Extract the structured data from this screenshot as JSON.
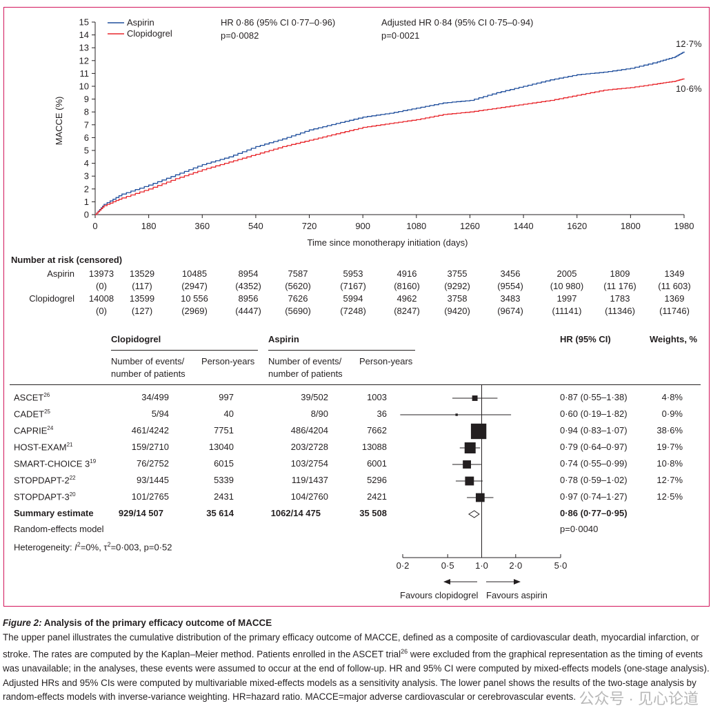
{
  "km": {
    "y_label": "MACCE (%)",
    "x_label": "Time since monotherapy initiation (days)",
    "y_ticks": [
      "0",
      "1",
      "2",
      "3",
      "4",
      "5",
      "6",
      "7",
      "8",
      "9",
      "10",
      "11",
      "12",
      "13",
      "14",
      "15"
    ],
    "x_ticks": [
      "0",
      "180",
      "360",
      "540",
      "720",
      "900",
      "1080",
      "1260",
      "1440",
      "1620",
      "1800",
      "1980"
    ],
    "legend": [
      {
        "label": "Aspirin",
        "color": "#1f4e9c"
      },
      {
        "label": "Clopidogrel",
        "color": "#e8262b"
      }
    ],
    "hr_text": "HR 0·86 (95% CI 0·77–0·96)",
    "hr_p": "p=0·0082",
    "adj_text": "Adjusted HR 0·84 (95% CI 0·75–0·94)",
    "adj_p": "p=0·0021",
    "end_labels": {
      "aspirin": "12·7%",
      "clopidogrel": "10·6%"
    }
  },
  "chart_data": {
    "type": "line",
    "title": "",
    "xlabel": "Time since monotherapy initiation (days)",
    "ylabel": "MACCE (%)",
    "xlim": [
      0,
      1980
    ],
    "ylim": [
      0,
      15
    ],
    "series": [
      {
        "name": "Aspirin",
        "x": [
          0,
          30,
          90,
          180,
          270,
          360,
          450,
          540,
          630,
          720,
          810,
          900,
          990,
          1080,
          1170,
          1260,
          1350,
          1440,
          1530,
          1620,
          1710,
          1800,
          1890,
          1950,
          1980
        ],
        "y": [
          0,
          0.8,
          1.6,
          2.3,
          3.1,
          3.9,
          4.5,
          5.3,
          5.9,
          6.6,
          7.1,
          7.6,
          7.9,
          8.3,
          8.7,
          8.9,
          9.5,
          10.0,
          10.5,
          10.9,
          11.1,
          11.4,
          11.9,
          12.3,
          12.7
        ]
      },
      {
        "name": "Clopidogrel",
        "x": [
          0,
          30,
          90,
          180,
          270,
          360,
          450,
          540,
          630,
          720,
          810,
          900,
          990,
          1080,
          1170,
          1260,
          1350,
          1440,
          1530,
          1620,
          1710,
          1800,
          1890,
          1950,
          1980
        ],
        "y": [
          0,
          0.7,
          1.3,
          2.0,
          2.8,
          3.5,
          4.1,
          4.7,
          5.3,
          5.8,
          6.3,
          6.8,
          7.1,
          7.4,
          7.8,
          8.0,
          8.3,
          8.6,
          8.9,
          9.3,
          9.7,
          9.9,
          10.2,
          10.4,
          10.6
        ]
      }
    ],
    "end_labels": [
      "12·7%",
      "10·6%"
    ]
  },
  "risk": {
    "title": "Number at risk (censored)",
    "rows": [
      {
        "label": "Aspirin",
        "n": [
          "13973",
          "13529",
          "10485",
          "8954",
          "7587",
          "5953",
          "4916",
          "3755",
          "3456",
          "2005",
          "1809",
          "1349"
        ],
        "c": [
          "(0)",
          "(117)",
          "(2947)",
          "(4352)",
          "(5620)",
          "(7167)",
          "(8160)",
          "(9292)",
          "(9554)",
          "(10 980)",
          "(11 176)",
          "(11 603)"
        ]
      },
      {
        "label": "Clopidogrel",
        "n": [
          "14008",
          "13599",
          "10 556",
          "8956",
          "7626",
          "5994",
          "4962",
          "3758",
          "3483",
          "1997",
          "1783",
          "1369"
        ],
        "c": [
          "(0)",
          "(127)",
          "(2969)",
          "(4447)",
          "(5690)",
          "(7248)",
          "(8247)",
          "(9420)",
          "(9674)",
          "(11141)",
          "(11346)",
          "(11746)"
        ]
      }
    ]
  },
  "forest": {
    "headers": {
      "clop": "Clopidogrel",
      "asp": "Aspirin",
      "hr": "HR (95% CI)",
      "w": "Weights, %"
    },
    "sub": {
      "events": "Number of events/",
      "patients": "number of patients",
      "py": "Person-years"
    },
    "studies": [
      {
        "name": "ASCET",
        "ref": "26",
        "ce": "34/499",
        "cp": "997",
        "ae": "39/502",
        "ap": "1003",
        "hr": "0·87 (0·55–1·38)",
        "w": "4·8%",
        "est": 0.87,
        "lo": 0.55,
        "hi": 1.38,
        "weight": 4.8
      },
      {
        "name": "CADET",
        "ref": "25",
        "ce": "5/94",
        "cp": "40",
        "ae": "8/90",
        "ap": "36",
        "hr": "0·60 (0·19–1·82)",
        "w": "0·9%",
        "est": 0.6,
        "lo": 0.19,
        "hi": 1.82,
        "weight": 0.9
      },
      {
        "name": "CAPRIE",
        "ref": "24",
        "ce": "461/4242",
        "cp": "7751",
        "ae": "486/4204",
        "ap": "7662",
        "hr": "0·94 (0·83–1·07)",
        "w": "38·6%",
        "est": 0.94,
        "lo": 0.83,
        "hi": 1.07,
        "weight": 38.6
      },
      {
        "name": "HOST-EXAM",
        "ref": "21",
        "ce": "159/2710",
        "cp": "13040",
        "ae": "203/2728",
        "ap": "13088",
        "hr": "0·79 (0·64–0·97)",
        "w": "19·7%",
        "est": 0.79,
        "lo": 0.64,
        "hi": 0.97,
        "weight": 19.7
      },
      {
        "name": "SMART-CHOICE 3",
        "ref": "19",
        "ce": "76/2752",
        "cp": "6015",
        "ae": "103/2754",
        "ap": "6001",
        "hr": "0·74 (0·55–0·99)",
        "w": "10·8%",
        "est": 0.74,
        "lo": 0.55,
        "hi": 0.99,
        "weight": 10.8
      },
      {
        "name": "STOPDAPT-2",
        "ref": "22",
        "ce": "93/1445",
        "cp": "5339",
        "ae": "119/1437",
        "ap": "5296",
        "hr": "0·78 (0·59–1·02)",
        "w": "12·7%",
        "est": 0.78,
        "lo": 0.59,
        "hi": 1.02,
        "weight": 12.7
      },
      {
        "name": "STOPDAPT-3",
        "ref": "20",
        "ce": "101/2765",
        "cp": "2431",
        "ae": "104/2760",
        "ap": "2421",
        "hr": "0·97 (0·74–1·27)",
        "w": "12·5%",
        "est": 0.97,
        "lo": 0.74,
        "hi": 1.27,
        "weight": 12.5
      }
    ],
    "summary": {
      "name": "Summary estimate",
      "ce": "929/14 507",
      "cp": "35 614",
      "ae": "1062/14 475",
      "ap": "35 508",
      "hr": "0·86 (0·77–0·95)",
      "est": 0.86,
      "lo": 0.77,
      "hi": 0.95
    },
    "model": "Random-effects model",
    "p": "p=0·0040",
    "het_prefix": "Heterogeneity: ",
    "het_i": "I",
    "het_rest": "=0%, τ",
    "het_end": "=0·003, p=0·52",
    "sq": "2",
    "axis_ticks": [
      "0·2",
      "0·5",
      "1·0",
      "2·0",
      "5·0"
    ],
    "favours_left": "Favours clopidogrel",
    "favours_right": "Favours aspirin"
  },
  "caption": {
    "title_italic": "Figure 2:",
    "title_rest": " Analysis of the primary efficacy outcome of MACCE",
    "p1": "The upper panel illustrates the cumulative distribution of the primary efficacy outcome of MACCE, defined as a composite of cardiovascular death, myocardial infarction, or stroke. The rates are computed by the Kaplan–Meier method. Patients enrolled in the ASCET trial",
    "ref": "26",
    "p2": " were excluded from the graphical representation as the timing of events was unavailable; in the analyses, these events were assumed to occur at the end of follow-up. HR and 95% CI were computed by mixed-effects models (one-stage analysis). Adjusted HRs and 95% CIs were computed by multivariable mixed-effects models as a sensitivity analysis. The lower panel shows the results of the two-stage analysis by random-effects models with inverse-variance weighting. HR=hazard ratio. MACCE=major adverse cardiovascular or cerebrovascular events."
  },
  "watermark": "公众号 · 见心论道"
}
